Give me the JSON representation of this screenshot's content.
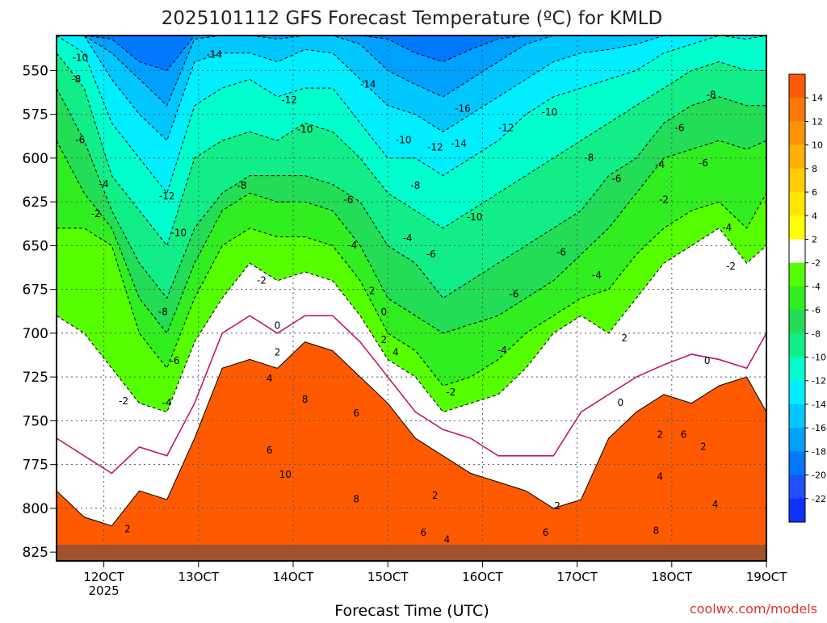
{
  "chart_data": {
    "type": "heatmap",
    "title": "2025101112 GFS Forecast Temperature (ºC) for KMLD",
    "xlabel": "Forecast Time (UTC)",
    "ylabel": "",
    "x_ticks": [
      {
        "label": "12OCT",
        "sub": "2025",
        "hours": 12
      },
      {
        "label": "13OCT",
        "sub": "",
        "hours": 36
      },
      {
        "label": "14OCT",
        "sub": "",
        "hours": 60
      },
      {
        "label": "15OCT",
        "sub": "",
        "hours": 84
      },
      {
        "label": "16OCT",
        "sub": "",
        "hours": 108
      },
      {
        "label": "17OCT",
        "sub": "",
        "hours": 132
      },
      {
        "label": "18OCT",
        "sub": "",
        "hours": 156
      },
      {
        "label": "19OCT",
        "sub": "",
        "hours": 180
      }
    ],
    "xlim_hours": [
      0,
      180
    ],
    "y_ticks": [
      550,
      575,
      600,
      625,
      650,
      675,
      700,
      725,
      750,
      775,
      800,
      825
    ],
    "ylim_hPa": [
      530,
      830
    ],
    "colorbar": {
      "labels": [
        14,
        12,
        10,
        8,
        6,
        4,
        2,
        -2,
        -4,
        -6,
        -8,
        -10,
        -12,
        -14,
        -16,
        -18,
        -20,
        -22
      ],
      "bins": [
        {
          "color": "#ff5a00"
        },
        {
          "color": "#ff7a00"
        },
        {
          "color": "#ff9400"
        },
        {
          "color": "#ffb000"
        },
        {
          "color": "#ffcc00"
        },
        {
          "color": "#ffe600"
        },
        {
          "color": "#ffff00"
        },
        {
          "color": "#ffffff"
        },
        {
          "color": "#55ff00"
        },
        {
          "color": "#30ee20"
        },
        {
          "color": "#22dd55"
        },
        {
          "color": "#11ee88"
        },
        {
          "color": "#00ffcc"
        },
        {
          "color": "#00eeff"
        },
        {
          "color": "#00c8ff"
        },
        {
          "color": "#00a0ff"
        },
        {
          "color": "#0078ff"
        },
        {
          "color": "#1e50ff"
        },
        {
          "color": "#1030ff"
        }
      ]
    },
    "series": [
      {
        "contour": 2,
        "hPa": [
          790,
          805,
          810,
          790,
          795,
          760,
          720,
          715,
          720,
          705,
          710,
          725,
          740,
          760,
          770,
          780,
          785,
          790,
          800,
          795,
          760,
          745,
          735,
          740,
          730,
          725,
          745
        ]
      },
      {
        "contour": 0,
        "hPa": [
          760,
          770,
          780,
          765,
          770,
          740,
          700,
          690,
          700,
          690,
          690,
          705,
          725,
          745,
          755,
          760,
          770,
          770,
          770,
          745,
          735,
          725,
          718,
          712,
          715,
          720,
          700
        ]
      },
      {
        "contour": -2,
        "hPa": [
          690,
          700,
          720,
          740,
          745,
          705,
          680,
          660,
          670,
          665,
          670,
          690,
          715,
          725,
          745,
          740,
          735,
          720,
          700,
          690,
          700,
          680,
          660,
          650,
          640,
          660,
          650
        ]
      },
      {
        "contour": -4,
        "hPa": [
          640,
          640,
          650,
          700,
          720,
          680,
          650,
          640,
          645,
          645,
          650,
          670,
          700,
          710,
          730,
          725,
          715,
          700,
          690,
          680,
          675,
          655,
          640,
          630,
          625,
          640,
          620
        ]
      },
      {
        "contour": -6,
        "hPa": [
          590,
          620,
          640,
          680,
          700,
          660,
          630,
          620,
          625,
          625,
          630,
          650,
          680,
          690,
          700,
          695,
          690,
          680,
          670,
          655,
          640,
          620,
          600,
          595,
          590,
          595,
          590
        ]
      },
      {
        "contour": -8,
        "hPa": [
          560,
          590,
          630,
          660,
          680,
          640,
          620,
          610,
          610,
          610,
          615,
          625,
          650,
          660,
          680,
          670,
          660,
          650,
          640,
          630,
          610,
          600,
          580,
          570,
          565,
          570,
          570
        ]
      },
      {
        "contour": -10,
        "hPa": [
          540,
          560,
          610,
          630,
          650,
          600,
          590,
          585,
          590,
          580,
          585,
          600,
          620,
          630,
          640,
          630,
          620,
          610,
          600,
          590,
          580,
          570,
          560,
          550,
          545,
          550,
          550
        ]
      },
      {
        "contour": -12,
        "hPa": [
          530,
          540,
          580,
          600,
          620,
          570,
          560,
          555,
          565,
          560,
          560,
          580,
          600,
          600,
          610,
          600,
          590,
          575,
          565,
          560,
          555,
          550,
          540,
          535,
          530,
          532,
          530
        ]
      },
      {
        "contour": -14,
        "hPa": [
          530,
          530,
          555,
          575,
          590,
          545,
          540,
          540,
          545,
          538,
          540,
          555,
          570,
          575,
          585,
          575,
          565,
          555,
          545,
          540,
          538,
          535,
          530,
          530,
          530,
          530,
          530
        ]
      },
      {
        "contour": -16,
        "hPa": [
          530,
          530,
          540,
          555,
          570,
          532,
          530,
          530,
          532,
          530,
          530,
          535,
          550,
          558,
          565,
          555,
          545,
          535,
          530,
          530,
          530,
          530,
          530,
          530,
          530,
          530,
          530
        ]
      },
      {
        "contour": -18,
        "hPa": [
          530,
          530,
          532,
          545,
          550,
          530,
          530,
          530,
          530,
          530,
          530,
          530,
          532,
          540,
          545,
          538,
          532,
          530,
          530,
          530,
          530,
          530,
          530,
          530,
          530,
          530,
          530
        ]
      }
    ],
    "series_hours": [
      0,
      7,
      14,
      21,
      28,
      35,
      42,
      49,
      56,
      63,
      70,
      77,
      84,
      91,
      98,
      105,
      112,
      119,
      126,
      133,
      140,
      147,
      154,
      161,
      168,
      175,
      180
    ],
    "contour_labels": [
      {
        "text": "-10",
        "hours": 6,
        "hPa": 543
      },
      {
        "text": "-8",
        "hours": 5,
        "hPa": 555
      },
      {
        "text": "-6",
        "hours": 6,
        "hPa": 590
      },
      {
        "text": "-14",
        "hours": 40,
        "hPa": 541
      },
      {
        "text": "-12",
        "hours": 59,
        "hPa": 567
      },
      {
        "text": "-14",
        "hours": 79,
        "hPa": 558
      },
      {
        "text": "-16",
        "hours": 103,
        "hPa": 572
      },
      {
        "text": "-12",
        "hours": 114,
        "hPa": 583
      },
      {
        "text": "-10",
        "hours": 125,
        "hPa": 574
      },
      {
        "text": "-10",
        "hours": 63,
        "hPa": 584
      },
      {
        "text": "-10",
        "hours": 88,
        "hPa": 590
      },
      {
        "text": "-12",
        "hours": 96,
        "hPa": 594
      },
      {
        "text": "-14",
        "hours": 102,
        "hPa": 592
      },
      {
        "text": "-8",
        "hours": 166,
        "hPa": 564
      },
      {
        "text": "-6",
        "hours": 158,
        "hPa": 583
      },
      {
        "text": "-6",
        "hours": 164,
        "hPa": 603
      },
      {
        "text": "-8",
        "hours": 135,
        "hPa": 600
      },
      {
        "text": "-6",
        "hours": 142,
        "hPa": 612
      },
      {
        "text": "-4",
        "hours": 153,
        "hPa": 604
      },
      {
        "text": "-8",
        "hours": 47,
        "hPa": 616
      },
      {
        "text": "-6",
        "hours": 74,
        "hPa": 624
      },
      {
        "text": "-8",
        "hours": 91,
        "hPa": 616
      },
      {
        "text": "-4",
        "hours": 12,
        "hPa": 615
      },
      {
        "text": "-2",
        "hours": 10,
        "hPa": 632
      },
      {
        "text": "-12",
        "hours": 28,
        "hPa": 622
      },
      {
        "text": "-10",
        "hours": 31,
        "hPa": 643
      },
      {
        "text": "-10",
        "hours": 106,
        "hPa": 634
      },
      {
        "text": "-2",
        "hours": 154,
        "hPa": 624
      },
      {
        "text": "-4",
        "hours": 170,
        "hPa": 640
      },
      {
        "text": "-4",
        "hours": 75,
        "hPa": 650
      },
      {
        "text": "-4",
        "hours": 89,
        "hPa": 646
      },
      {
        "text": "-6",
        "hours": 95,
        "hPa": 655
      },
      {
        "text": "-6",
        "hours": 128,
        "hPa": 654
      },
      {
        "text": "-4",
        "hours": 137,
        "hPa": 667
      },
      {
        "text": "-2",
        "hours": 171,
        "hPa": 662
      },
      {
        "text": "-2",
        "hours": 52,
        "hPa": 670
      },
      {
        "text": "-6",
        "hours": 116,
        "hPa": 678
      },
      {
        "text": "2",
        "hours": 80,
        "hPa": 676
      },
      {
        "text": "0",
        "hours": 83,
        "hPa": 688
      },
      {
        "text": "-8",
        "hours": 27,
        "hPa": 688
      },
      {
        "text": "0",
        "hours": 56,
        "hPa": 696
      },
      {
        "text": "2",
        "hours": 56,
        "hPa": 711
      },
      {
        "text": "2",
        "hours": 83,
        "hPa": 704
      },
      {
        "text": "4",
        "hours": 86,
        "hPa": 711
      },
      {
        "text": "4",
        "hours": 54,
        "hPa": 726
      },
      {
        "text": "-4",
        "hours": 113,
        "hPa": 710
      },
      {
        "text": "2",
        "hours": 144,
        "hPa": 703
      },
      {
        "text": "0",
        "hours": 165,
        "hPa": 716
      },
      {
        "text": "-6",
        "hours": 30,
        "hPa": 716
      },
      {
        "text": "-4",
        "hours": 28,
        "hPa": 740
      },
      {
        "text": "-2",
        "hours": 17,
        "hPa": 739
      },
      {
        "text": "-2",
        "hours": 100,
        "hPa": 734
      },
      {
        "text": "0",
        "hours": 143,
        "hPa": 740
      },
      {
        "text": "8",
        "hours": 63,
        "hPa": 738
      },
      {
        "text": "6",
        "hours": 76,
        "hPa": 746
      },
      {
        "text": "2",
        "hours": 153,
        "hPa": 758
      },
      {
        "text": "6",
        "hours": 159,
        "hPa": 758
      },
      {
        "text": "2",
        "hours": 164,
        "hPa": 765
      },
      {
        "text": "6",
        "hours": 54,
        "hPa": 767
      },
      {
        "text": "10",
        "hours": 58,
        "hPa": 781
      },
      {
        "text": "4",
        "hours": 153,
        "hPa": 782
      },
      {
        "text": "8",
        "hours": 76,
        "hPa": 795
      },
      {
        "text": "2",
        "hours": 96,
        "hPa": 793
      },
      {
        "text": "2",
        "hours": 127,
        "hPa": 799
      },
      {
        "text": "4",
        "hours": 167,
        "hPa": 798
      },
      {
        "text": "6",
        "hours": 93,
        "hPa": 814
      },
      {
        "text": "4",
        "hours": 99,
        "hPa": 818
      },
      {
        "text": "6",
        "hours": 124,
        "hPa": 814
      },
      {
        "text": "8",
        "hours": 152,
        "hPa": 813
      },
      {
        "text": "2",
        "hours": 18,
        "hPa": 812
      }
    ]
  },
  "credit": "coolwx.com/models"
}
